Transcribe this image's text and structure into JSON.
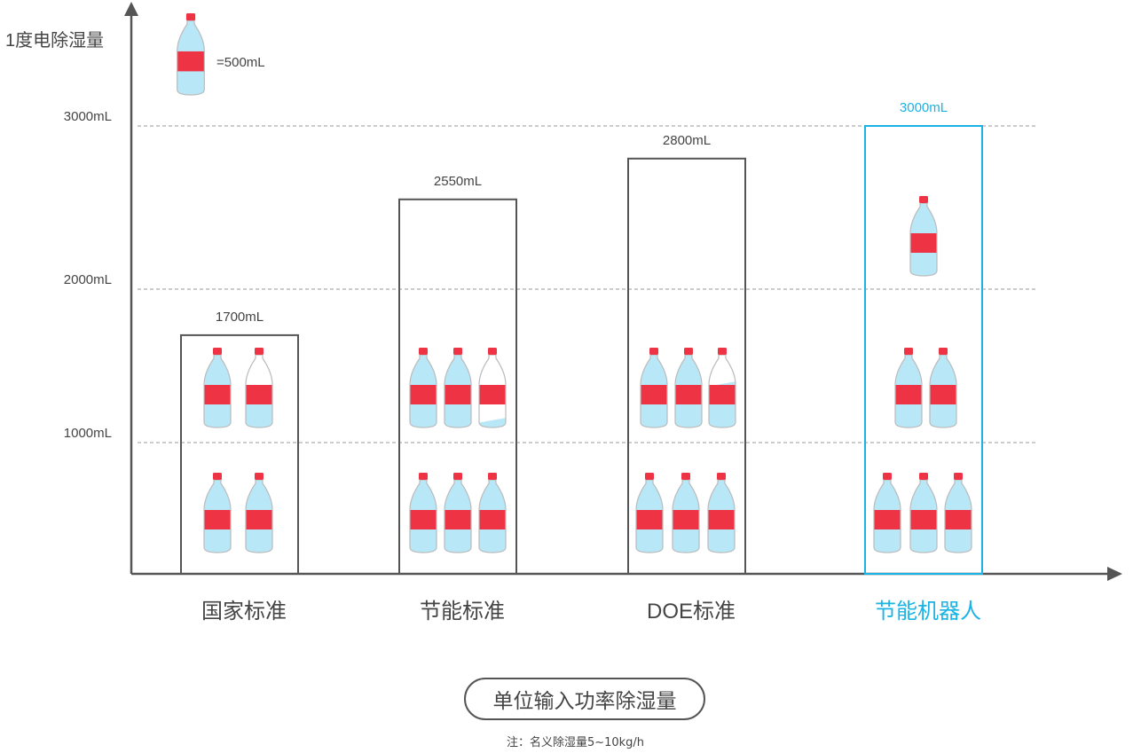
{
  "chart_data": {
    "type": "bar",
    "style": "pictogram",
    "ylabel": "1度电除湿量",
    "unit_legend": "=500mL",
    "unit_value": 500,
    "yticks": [
      {
        "value": 1000,
        "label": "1000mL"
      },
      {
        "value": 2000,
        "label": "2000mL"
      },
      {
        "value": 3000,
        "label": "3000mL"
      }
    ],
    "grid": "dashed horizontal at ticks",
    "categories": [
      "国家标准",
      "节能标准",
      "DOE标准",
      "节能机器人"
    ],
    "values": [
      1700,
      2550,
      2800,
      3000
    ],
    "data_labels": [
      "1700mL",
      "2550mL",
      "2800mL",
      "3000mL"
    ],
    "highlight_index": 3,
    "xlabel": "单位输入功率除湿量",
    "footnote": "注：名义除湿量5~10kg/h"
  },
  "colors": {
    "axis": "#555555",
    "box": "#555555",
    "highlight": "#1ab3e6",
    "grid": "#bbbbbb",
    "bottle_water": "#b8e8f8",
    "bottle_label": "#ee3344",
    "text": "#444444"
  }
}
